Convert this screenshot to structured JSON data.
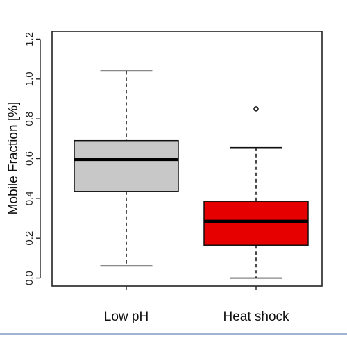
{
  "chart_data": {
    "type": "box",
    "title": "",
    "xlabel": "",
    "ylabel": "Mobile Fraction [%]",
    "ylim": [
      -0.04,
      1.24
    ],
    "yticks": [
      "0.0",
      "0.2",
      "0.4",
      "0.6",
      "0.8",
      "1.0",
      "1.2"
    ],
    "categories": [
      "Low pH",
      "Heat shock"
    ],
    "boxes": [
      {
        "category": "Low pH",
        "color": "#c8c8c8",
        "min": 0.06,
        "q1": 0.435,
        "median": 0.595,
        "q3": 0.69,
        "max": 1.04,
        "outliers": []
      },
      {
        "category": "Heat shock",
        "color": "#e60000",
        "min": 0.0,
        "q1": 0.165,
        "median": 0.285,
        "q3": 0.385,
        "max": 0.655,
        "outliers": [
          0.85
        ]
      }
    ],
    "grid": false,
    "legend": "none"
  }
}
